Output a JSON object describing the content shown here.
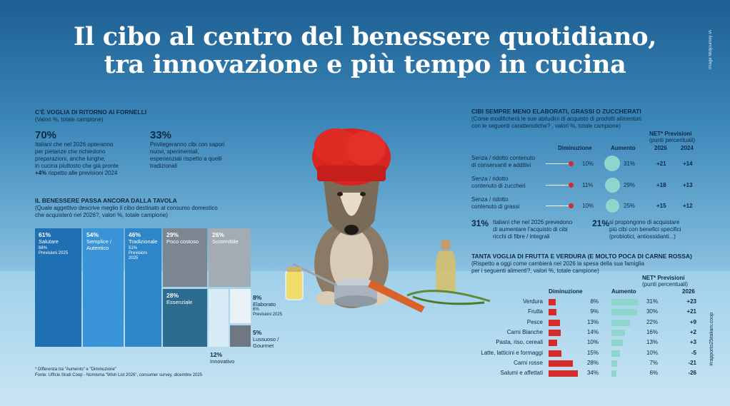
{
  "title_line1": "Il cibo al centro del benessere quotidiano,",
  "title_line2": "tra innovazione e più tempo in cucina",
  "credit": "Image Midjourney IA",
  "hashtag": "#rapporto25italiani.coop",
  "section1": {
    "heading": "C'È VOGLIA DI RITORNO AI FORNELLI",
    "subheading": "(Valori %, totale campione)",
    "stat1_value": "70%",
    "stat1_text_1": "Italiani che nel 2026 opteranno",
    "stat1_text_2": "per pietanze che richiedono",
    "stat1_text_3": "preparazioni, anche lunghe,",
    "stat1_text_4": "in cucina piuttosto che già pronte",
    "stat1_text_5_bold": "+4%",
    "stat1_text_5": " rispetto alle previsioni 2024",
    "stat2_value": "33%",
    "stat2_text_1": "Privilegeranno cibi con sapori",
    "stat2_text_2": "nuovi, sperimentali,",
    "stat2_text_3": "esperienziali rispetto a quelli",
    "stat2_text_4": "tradizionali"
  },
  "section2": {
    "heading": "IL BENESSERE PASSA ANCORA DALLA TAVOLA",
    "subheading_1": "(Quale aggettivo descrive meglio il cibo destinato al consumo domestico",
    "subheading_2": "che acquisterò nel 2026?, valori %, totale campione)",
    "footnote_1": "* Differenza tra \"Aumento\" e \"Diminuzione\"",
    "footnote_2": "Fonte: Ufficio Studi Coop - Nomisma \"Wish List 2026\", consumer survey, dicembre 2025",
    "items": [
      {
        "pct": "61%",
        "label": "Salutare",
        "prev": "68%",
        "prev_label": "Previsioni 2025"
      },
      {
        "pct": "54%",
        "label_1": "Semplice /",
        "label_2": "Autentico"
      },
      {
        "pct": "46%",
        "label": "Tradizionale",
        "prev": "51%",
        "prev_label_1": "Previsioni",
        "prev_label_2": "2025"
      },
      {
        "pct": "29%",
        "label": "Poco costoso"
      },
      {
        "pct": "26%",
        "label": "Sostenibile"
      },
      {
        "pct": "28%",
        "label": "Essenziale"
      },
      {
        "pct": "12%",
        "label": "Innovativo"
      },
      {
        "pct": "8%",
        "label": "Elaborato",
        "prev": "6%",
        "prev_label": "Previsioni 2025"
      },
      {
        "pct": "5%",
        "label_1": "Lussuoso /",
        "label_2": "Gourmet"
      }
    ]
  },
  "section3": {
    "heading": "CIBI SEMPRE MENO ELABORATI, GRASSI O ZUCCHERATI",
    "subheading_1": "(Come modificherà le sue abitudini di acquisto di prodotti alimentari",
    "subheading_2": "con le seguenti caratteristiche? , valori %, totale campione)",
    "col_dim": "Diminuzione",
    "col_aum": "Aumento",
    "col_net": "NET* Previsioni",
    "col_net_sub": "(punti percentuali)",
    "col_2026": "2026",
    "col_2024": "2024",
    "rows": [
      {
        "label_1": "Senza / ridotto contenuto",
        "label_2": "di conservanti e additivi",
        "dim": "10%",
        "aum": "31%",
        "net2026": "+21",
        "net2024": "+14"
      },
      {
        "label_1": "Senza / ridotto",
        "label_2": "contenuto di zuccheri",
        "dim": "11%",
        "aum": "29%",
        "net2026": "+18",
        "net2024": "+13"
      },
      {
        "label_1": "Senza / ridotto",
        "label_2": "contenuto di grassi",
        "dim": "10%",
        "aum": "25%",
        "net2026": "+15",
        "net2024": "+12"
      }
    ],
    "stat1_value": "31%",
    "stat1_text_1": "Italiani che nel 2026 prevedono",
    "stat1_text_2": "di aumentare l'acquisto di cibi",
    "stat1_text_3": "ricchi di fibre / integrali",
    "stat2_value": "21%",
    "stat2_text_1": "si propongono di acquistare",
    "stat2_text_2": "più cibi con benefici specifici",
    "stat2_text_3": "(probiotici, antiossidanti...)"
  },
  "section4": {
    "heading": "TANTA VOGLIA DI FRUTTA E VERDURA (E MOLTO POCA DI CARNE ROSSA)",
    "subheading_1": "(Rispetto a oggi come cambierà nel 2026 la spesa della sua famiglia",
    "subheading_2": "per i seguenti alimenti?, valori %, totale campione)",
    "col_dim": "Diminuzione",
    "col_aum": "Aumento",
    "col_net": "NET* Previsioni",
    "col_net_sub": "(punti percentuali)",
    "col_2026": "2026"
  },
  "chart_data": {
    "type": "bar",
    "title": "TANTA VOGLIA DI FRUTTA E VERDURA (E MOLTO POCA DI CARNE ROSSA)",
    "categories": [
      "Verdura",
      "Frutta",
      "Pesce",
      "Carni Bianche",
      "Pasta, riso, cereali",
      "Latte, latticini e formaggi",
      "Carni rosse",
      "Salumi e affettati"
    ],
    "series": [
      {
        "name": "Diminuzione",
        "values": [
          8,
          9,
          13,
          14,
          10,
          15,
          28,
          34
        ],
        "color": "#d62b2b"
      },
      {
        "name": "Aumento",
        "values": [
          31,
          30,
          22,
          16,
          13,
          10,
          7,
          6
        ],
        "color": "#8ed6cc"
      }
    ],
    "net_2026": [
      "+23",
      "+21",
      "+9",
      "+2",
      "+3",
      "-5",
      "-21",
      "-26"
    ],
    "dim_labels": [
      "8%",
      "9%",
      "13%",
      "14%",
      "10%",
      "15%",
      "28%",
      "34%"
    ],
    "aum_labels": [
      "31%",
      "30%",
      "22%",
      "16%",
      "13%",
      "10%",
      "7%",
      "6%"
    ]
  }
}
